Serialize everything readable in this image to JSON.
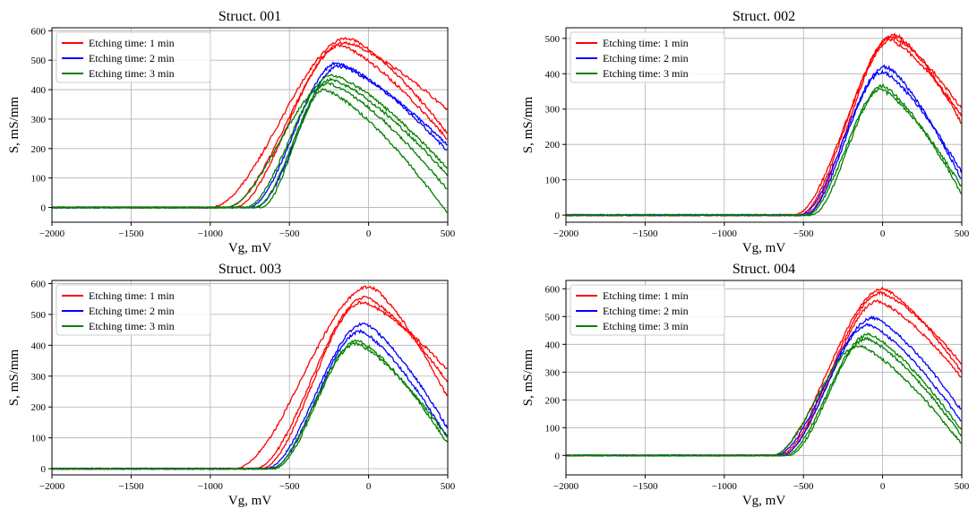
{
  "figure": {
    "legend_labels": [
      "Etching time: 1 min",
      "Etching time: 2 min",
      "Etching time: 3 min"
    ],
    "colors": {
      "1 min": "#ff0000",
      "2 min": "#0000ff",
      "3 min": "#008000",
      "grid": "#b0b0b0",
      "axis": "#000000"
    }
  },
  "chart_data": [
    {
      "type": "line",
      "title": "Struct. 001",
      "xlabel": "Vg, mV",
      "ylabel": "S, mS/mm",
      "xlim": [
        -2000,
        500
      ],
      "ylim": [
        -50,
        610
      ],
      "xticks": [
        -2000,
        -1500,
        -1000,
        -500,
        0,
        500
      ],
      "yticks": [
        0,
        100,
        200,
        300,
        400,
        500,
        600
      ],
      "grid": true,
      "legend_position": "top-left",
      "series": [
        {
          "name": "Etching time: 1 min",
          "color": "#ff0000",
          "curves": [
            {
              "peak": 575,
              "vpeak": -130,
              "end": 250,
              "onset": -1000
            },
            {
              "peak": 560,
              "vpeak": -150,
              "end": 330,
              "onset": -900
            },
            {
              "peak": 550,
              "vpeak": -180,
              "end": 230,
              "onset": -850
            }
          ]
        },
        {
          "name": "Etching time: 2 min",
          "color": "#0000ff",
          "curves": [
            {
              "peak": 490,
              "vpeak": -200,
              "end": 190,
              "onset": -760
            },
            {
              "peak": 480,
              "vpeak": -190,
              "end": 210,
              "onset": -720
            }
          ]
        },
        {
          "name": "Etching time: 3 min",
          "color": "#008000",
          "curves": [
            {
              "peak": 450,
              "vpeak": -230,
              "end": 130,
              "onset": -780
            },
            {
              "peak": 435,
              "vpeak": -240,
              "end": 110,
              "onset": -720
            },
            {
              "peak": 420,
              "vpeak": -250,
              "end": 60,
              "onset": -900
            },
            {
              "peak": 400,
              "vpeak": -280,
              "end": -20,
              "onset": -680
            }
          ]
        }
      ]
    },
    {
      "type": "line",
      "title": "Struct. 002",
      "xlabel": "Vg, mV",
      "ylabel": "S, mS/mm",
      "xlim": [
        -2000,
        500
      ],
      "ylim": [
        -20,
        530
      ],
      "xticks": [
        -2000,
        -1500,
        -1000,
        -500,
        0,
        500
      ],
      "yticks": [
        0,
        100,
        200,
        300,
        400,
        500
      ],
      "grid": true,
      "legend_position": "top-left",
      "series": [
        {
          "name": "Etching time: 1 min",
          "color": "#ff0000",
          "curves": [
            {
              "peak": 510,
              "vpeak": 80,
              "end": 260,
              "onset": -560
            },
            {
              "peak": 505,
              "vpeak": 60,
              "end": 300,
              "onset": -530
            },
            {
              "peak": 495,
              "vpeak": 50,
              "end": 280,
              "onset": -500
            }
          ]
        },
        {
          "name": "Etching time: 2 min",
          "color": "#0000ff",
          "curves": [
            {
              "peak": 420,
              "vpeak": 20,
              "end": 100,
              "onset": -520
            },
            {
              "peak": 405,
              "vpeak": 0,
              "end": 120,
              "onset": -490
            }
          ]
        },
        {
          "name": "Etching time: 3 min",
          "color": "#008000",
          "curves": [
            {
              "peak": 365,
              "vpeak": 0,
              "end": 60,
              "onset": -480
            },
            {
              "peak": 355,
              "vpeak": -10,
              "end": 80,
              "onset": -450
            }
          ]
        }
      ]
    },
    {
      "type": "line",
      "title": "Struct. 003",
      "xlabel": "Vg, mV",
      "ylabel": "S, mS/mm",
      "xlim": [
        -2000,
        500
      ],
      "ylim": [
        -20,
        610
      ],
      "xticks": [
        -2000,
        -1500,
        -1000,
        -500,
        0,
        500
      ],
      "yticks": [
        0,
        100,
        200,
        300,
        400,
        500,
        600
      ],
      "grid": true,
      "legend_position": "top-left",
      "series": [
        {
          "name": "Etching time: 1 min",
          "color": "#ff0000",
          "curves": [
            {
              "peak": 590,
              "vpeak": 10,
              "end": 230,
              "onset": -850
            },
            {
              "peak": 555,
              "vpeak": -20,
              "end": 280,
              "onset": -720
            },
            {
              "peak": 540,
              "vpeak": -40,
              "end": 320,
              "onset": -680
            }
          ]
        },
        {
          "name": "Etching time: 2 min",
          "color": "#0000ff",
          "curves": [
            {
              "peak": 470,
              "vpeak": -30,
              "end": 130,
              "onset": -650
            },
            {
              "peak": 445,
              "vpeak": -50,
              "end": 100,
              "onset": -620
            }
          ]
        },
        {
          "name": "Etching time: 3 min",
          "color": "#008000",
          "curves": [
            {
              "peak": 415,
              "vpeak": -70,
              "end": 80,
              "onset": -620
            },
            {
              "peak": 405,
              "vpeak": -80,
              "end": 100,
              "onset": -600
            }
          ]
        }
      ]
    },
    {
      "type": "line",
      "title": "Struct. 004",
      "xlabel": "Vg, mV",
      "ylabel": "S, mS/mm",
      "xlim": [
        -2000,
        500
      ],
      "ylim": [
        -70,
        630
      ],
      "xticks": [
        -2000,
        -1500,
        -1000,
        -500,
        0,
        500
      ],
      "yticks": [
        0,
        100,
        200,
        300,
        400,
        500,
        600
      ],
      "grid": true,
      "legend_position": "top-left",
      "series": [
        {
          "name": "Etching time: 1 min",
          "color": "#ff0000",
          "curves": [
            {
              "peak": 600,
              "vpeak": 0,
              "end": 300,
              "onset": -700
            },
            {
              "peak": 585,
              "vpeak": -10,
              "end": 330,
              "onset": -660
            },
            {
              "peak": 555,
              "vpeak": -30,
              "end": 280,
              "onset": -640
            }
          ]
        },
        {
          "name": "Etching time: 2 min",
          "color": "#0000ff",
          "curves": [
            {
              "peak": 495,
              "vpeak": -60,
              "end": 160,
              "onset": -680
            },
            {
              "peak": 470,
              "vpeak": -90,
              "end": 120,
              "onset": -640
            }
          ]
        },
        {
          "name": "Etching time: 3 min",
          "color": "#008000",
          "curves": [
            {
              "peak": 435,
              "vpeak": -90,
              "end": 90,
              "onset": -620
            },
            {
              "peak": 420,
              "vpeak": -100,
              "end": 70,
              "onset": -600
            },
            {
              "peak": 395,
              "vpeak": -150,
              "end": 40,
              "onset": -700
            }
          ]
        }
      ]
    }
  ]
}
